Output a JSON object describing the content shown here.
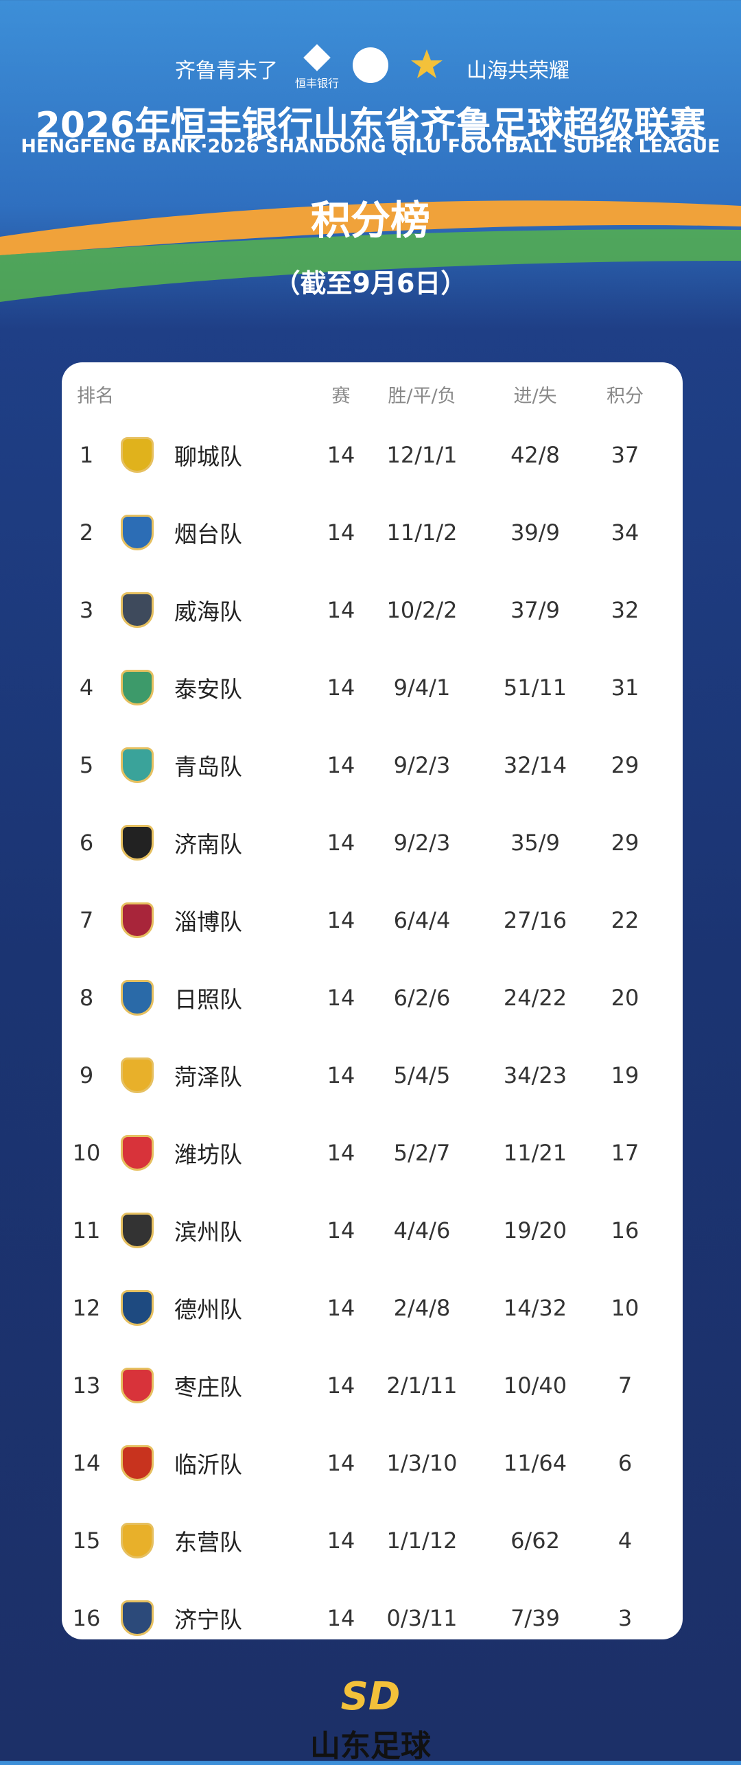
{
  "header": {
    "slogan_left": "齐鲁青未了",
    "sponsor": "恒丰银行",
    "slogan_right": "山海共荣耀",
    "title": "2026年恒丰银行山东省齐鲁足球超级联赛",
    "subtitle": "HENGFENG BANK·2026 SHANDONG QILU FOOTBALL SUPER LEAGUE",
    "heading": "积分榜",
    "date": "（截至9月6日）"
  },
  "table": {
    "columns": [
      "排名",
      "赛",
      "胜/平/负",
      "进/失",
      "积分"
    ],
    "rows": [
      {
        "rank": 1,
        "team": "聊城队",
        "played": 14,
        "record": "12/1/1",
        "goals": "42/8",
        "points": 37
      },
      {
        "rank": 2,
        "team": "烟台队",
        "played": 14,
        "record": "11/1/2",
        "goals": "39/9",
        "points": 34
      },
      {
        "rank": 3,
        "team": "威海队",
        "played": 14,
        "record": "10/2/2",
        "goals": "37/9",
        "points": 32
      },
      {
        "rank": 4,
        "team": "泰安队",
        "played": 14,
        "record": "9/4/1",
        "goals": "51/11",
        "points": 31
      },
      {
        "rank": 5,
        "team": "青岛队",
        "played": 14,
        "record": "9/2/3",
        "goals": "32/14",
        "points": 29
      },
      {
        "rank": 6,
        "team": "济南队",
        "played": 14,
        "record": "9/2/3",
        "goals": "35/9",
        "points": 29
      },
      {
        "rank": 7,
        "team": "淄博队",
        "played": 14,
        "record": "6/4/4",
        "goals": "27/16",
        "points": 22
      },
      {
        "rank": 8,
        "team": "日照队",
        "played": 14,
        "record": "6/2/6",
        "goals": "24/22",
        "points": 20
      },
      {
        "rank": 9,
        "team": "菏泽队",
        "played": 14,
        "record": "5/4/5",
        "goals": "34/23",
        "points": 19
      },
      {
        "rank": 10,
        "team": "潍坊队",
        "played": 14,
        "record": "5/2/7",
        "goals": "11/21",
        "points": 17
      },
      {
        "rank": 11,
        "team": "滨州队",
        "played": 14,
        "record": "4/4/6",
        "goals": "19/20",
        "points": 16
      },
      {
        "rank": 12,
        "team": "德州队",
        "played": 14,
        "record": "2/4/8",
        "goals": "14/32",
        "points": 10
      },
      {
        "rank": 13,
        "team": "枣庄队",
        "played": 14,
        "record": "2/1/11",
        "goals": "10/40",
        "points": 7
      },
      {
        "rank": 14,
        "team": "临沂队",
        "played": 14,
        "record": "1/3/10",
        "goals": "11/64",
        "points": 6
      },
      {
        "rank": 15,
        "team": "东营队",
        "played": 14,
        "record": "1/1/12",
        "goals": "6/62",
        "points": 4
      },
      {
        "rank": 16,
        "team": "济宁队",
        "played": 14,
        "record": "0/3/11",
        "goals": "7/39",
        "points": 3
      }
    ]
  },
  "footer": {
    "brand": "山东足球"
  }
}
